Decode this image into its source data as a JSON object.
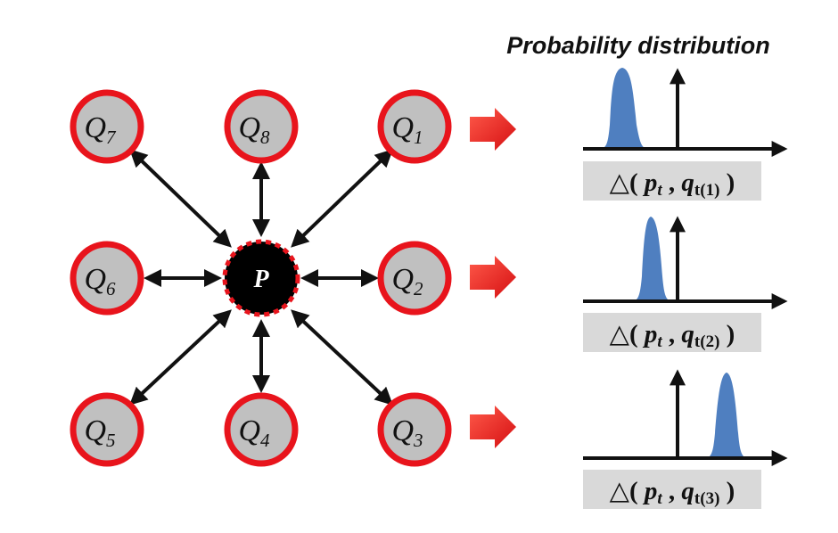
{
  "title": "Probability distribution",
  "center_node": {
    "label": "P"
  },
  "neighbor_nodes": [
    {
      "letter": "Q",
      "index": "1"
    },
    {
      "letter": "Q",
      "index": "2"
    },
    {
      "letter": "Q",
      "index": "3"
    },
    {
      "letter": "Q",
      "index": "4"
    },
    {
      "letter": "Q",
      "index": "5"
    },
    {
      "letter": "Q",
      "index": "6"
    },
    {
      "letter": "Q",
      "index": "7"
    },
    {
      "letter": "Q",
      "index": "8"
    }
  ],
  "distributions": [
    {
      "delta_symbol": "△",
      "open": "( ",
      "p": "p",
      "p_sub": "t",
      "sep": " , ",
      "q": "q",
      "q_sub": "t(1)",
      "close": " )",
      "peak_side": "left"
    },
    {
      "delta_symbol": "△",
      "open": "( ",
      "p": "p",
      "p_sub": "t",
      "sep": " , ",
      "q": "q",
      "q_sub": "t(2)",
      "close": " )",
      "peak_side": "near-center"
    },
    {
      "delta_symbol": "△",
      "open": "( ",
      "p": "p",
      "p_sub": "t",
      "sep": " , ",
      "q": "q",
      "q_sub": "t(3)",
      "close": " )",
      "peak_side": "right"
    }
  ],
  "colors": {
    "node_ring": "#e8141c",
    "node_fill": "#c0c0c0",
    "center_fill": "#000000",
    "arrow_red": "#e8141c",
    "curve_blue": "#4f7fc0",
    "label_box": "#d9d9d9"
  }
}
